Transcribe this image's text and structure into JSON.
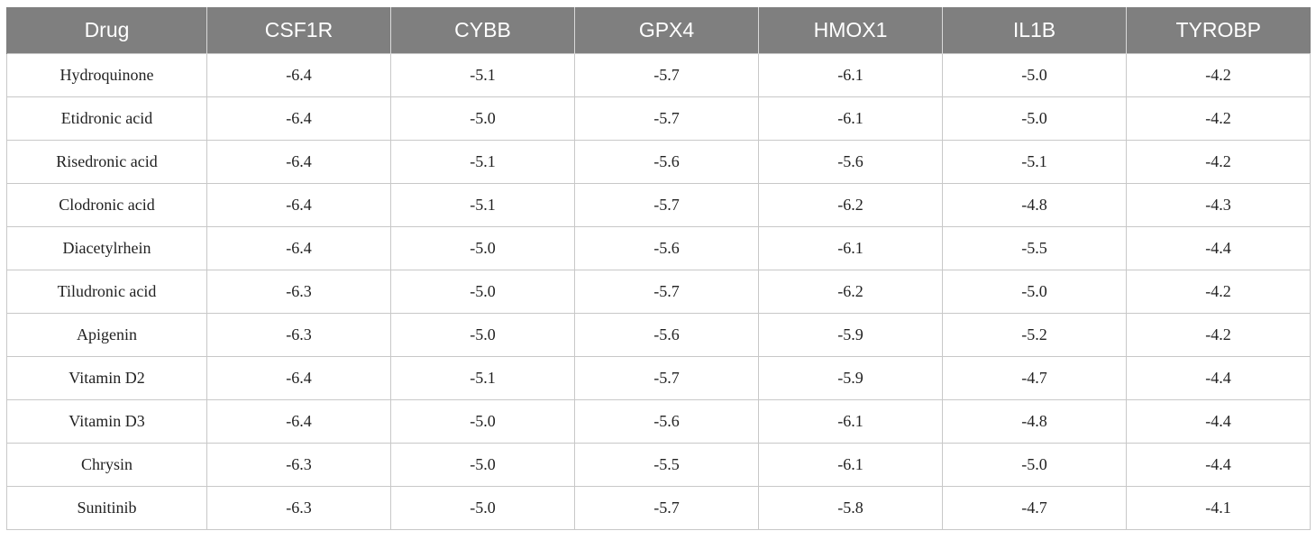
{
  "table": {
    "headers": [
      "Drug",
      "CSF1R",
      "CYBB",
      "GPX4",
      "HMOX1",
      "IL1B",
      "TYROBP"
    ],
    "rows": [
      [
        "Hydroquinone",
        "-6.4",
        "-5.1",
        "-5.7",
        "-6.1",
        "-5.0",
        "-4.2"
      ],
      [
        "Etidronic acid",
        "-6.4",
        "-5.0",
        "-5.7",
        "-6.1",
        "-5.0",
        "-4.2"
      ],
      [
        "Risedronic acid",
        "-6.4",
        "-5.1",
        "-5.6",
        "-5.6",
        "-5.1",
        "-4.2"
      ],
      [
        "Clodronic acid",
        "-6.4",
        "-5.1",
        "-5.7",
        "-6.2",
        "-4.8",
        "-4.3"
      ],
      [
        "Diacetylrhein",
        "-6.4",
        "-5.0",
        "-5.6",
        "-6.1",
        "-5.5",
        "-4.4"
      ],
      [
        "Tiludronic acid",
        "-6.3",
        "-5.0",
        "-5.7",
        "-6.2",
        "-5.0",
        "-4.2"
      ],
      [
        "Apigenin",
        "-6.3",
        "-5.0",
        "-5.6",
        "-5.9",
        "-5.2",
        "-4.2"
      ],
      [
        "Vitamin D2",
        "-6.4",
        "-5.1",
        "-5.7",
        "-5.9",
        "-4.7",
        "-4.4"
      ],
      [
        "Vitamin D3",
        "-6.4",
        "-5.0",
        "-5.6",
        "-6.1",
        "-4.8",
        "-4.4"
      ],
      [
        "Chrysin",
        "-6.3",
        "-5.0",
        "-5.5",
        "-6.1",
        "-5.0",
        "-4.4"
      ],
      [
        "Sunitinib",
        "-6.3",
        "-5.0",
        "-5.7",
        "-5.8",
        "-4.7",
        "-4.1"
      ]
    ]
  },
  "colors": {
    "header_bg": "#7f7f7f",
    "header_text": "#ffffff",
    "grid": "#c8c8c8"
  }
}
